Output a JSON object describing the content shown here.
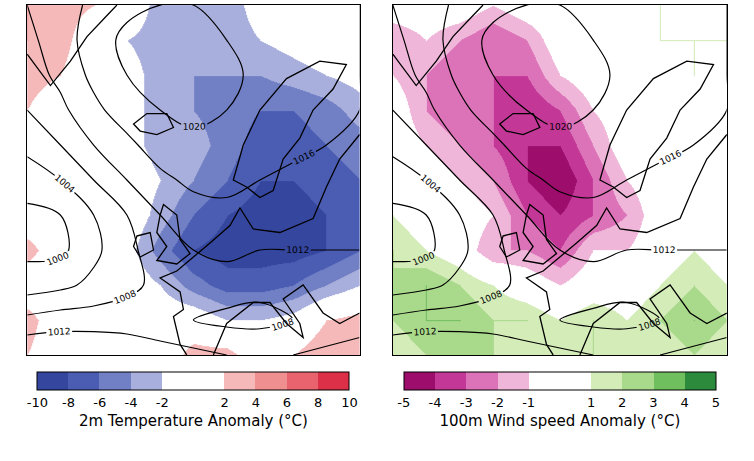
{
  "chart_data": [
    {
      "type": "heatmap",
      "colorbar_title": "2m Temperature Anomaly (°C)",
      "tick_labels": false,
      "x": [
        0,
        1,
        2,
        3,
        4,
        5,
        6,
        7,
        8,
        9,
        10
      ],
      "y": [
        10,
        9,
        8,
        7,
        6,
        5,
        4,
        3,
        2,
        1,
        0
      ],
      "z": [
        [
          4,
          3,
          2,
          0,
          -3,
          -3,
          -3,
          -1,
          0,
          0,
          0
        ],
        [
          4,
          3,
          0,
          -2,
          -3,
          -4,
          -3,
          -2,
          -1,
          0,
          0
        ],
        [
          3,
          2,
          0,
          -1,
          -3,
          -4,
          -4,
          -4,
          -3,
          -2,
          -1
        ],
        [
          2,
          0,
          0,
          -1,
          -3,
          -4,
          -5,
          -6,
          -6,
          -5,
          -3
        ],
        [
          0,
          0,
          0,
          -1,
          -3,
          -3,
          -5,
          -7,
          -7,
          -6,
          -5
        ],
        [
          0,
          0,
          0,
          0,
          -2,
          -4,
          -6,
          -8,
          -8,
          -7,
          -6
        ],
        [
          0,
          0,
          0,
          0,
          -3,
          -6,
          -8,
          -9,
          -9,
          -8,
          -7
        ],
        [
          3,
          0,
          0,
          -1,
          -5,
          -8,
          -9,
          -9,
          -9,
          -8,
          -6
        ],
        [
          0,
          0,
          0,
          0,
          -2,
          -5,
          -7,
          -7,
          -6,
          -4,
          -2
        ],
        [
          3,
          0,
          0,
          0,
          0,
          0,
          -2,
          -2,
          -1,
          2,
          3
        ],
        [
          2,
          0,
          0,
          0,
          0,
          3,
          3,
          0,
          2,
          4,
          3
        ]
      ],
      "color_levels": [
        -10,
        -8,
        -6,
        -4,
        -2,
        2,
        4,
        6,
        8,
        10
      ],
      "colors": [
        "#34469e",
        "#4a5db3",
        "#717fc4",
        "#a9afdc",
        "#ffffff",
        "#f5b9b9",
        "#ef8f8f",
        "#e8636d",
        "#dc2f48"
      ],
      "colorbar_ticks": [
        -10,
        -8,
        -6,
        -4,
        -2,
        2,
        4,
        6,
        8,
        10
      ],
      "isobars": {
        "levels": [
          1000,
          1004,
          1008,
          1012,
          1016,
          1020
        ],
        "z": [
          [
            1012,
            1014,
            1017,
            1019,
            1020,
            1020,
            1019,
            1018,
            1017,
            1017,
            1016
          ],
          [
            1011,
            1014,
            1018,
            1021,
            1022,
            1022,
            1020,
            1019,
            1018,
            1017,
            1016
          ],
          [
            1010,
            1013,
            1017,
            1020,
            1022,
            1022,
            1021,
            1019,
            1018,
            1017,
            1016
          ],
          [
            1008,
            1011,
            1015,
            1018,
            1020,
            1021,
            1020,
            1019,
            1018,
            1017,
            1016
          ],
          [
            1005,
            1008,
            1012,
            1015,
            1018,
            1019,
            1019,
            1018,
            1017,
            1016,
            1015
          ],
          [
            1002,
            1004,
            1008,
            1012,
            1015,
            1017,
            1017,
            1016,
            1015,
            1014,
            1014
          ],
          [
            999,
            1000,
            1004,
            1008,
            1012,
            1014,
            1015,
            1014,
            1013,
            1013,
            1013
          ],
          [
            999,
            999,
            1003,
            1007,
            1010,
            1012,
            1013,
            1012,
            1012,
            1012,
            1012
          ],
          [
            1002,
            1003,
            1005,
            1007,
            1009,
            1010,
            1010,
            1009,
            1010,
            1011,
            1012
          ],
          [
            1009,
            1010,
            1010,
            1010,
            1009,
            1008,
            1007,
            1007,
            1008,
            1009,
            1010
          ],
          [
            1016,
            1016,
            1016,
            1015,
            1014,
            1013,
            1012,
            1011,
            1012,
            1013,
            1014
          ]
        ]
      }
    },
    {
      "type": "heatmap",
      "colorbar_title": "100m Wind speed Anomaly (°C)",
      "tick_labels": false,
      "x": [
        0,
        1,
        2,
        3,
        4,
        5,
        6,
        7,
        8,
        9,
        10
      ],
      "y": [
        10,
        9,
        8,
        7,
        6,
        5,
        4,
        3,
        2,
        1,
        0
      ],
      "z": [
        [
          0,
          0,
          0,
          -1,
          0,
          0,
          -1,
          0,
          1,
          0,
          1
        ],
        [
          -2,
          -1,
          -2,
          -3,
          -2,
          0,
          0,
          0,
          1,
          1,
          1
        ],
        [
          -1,
          -2,
          -3,
          -3,
          -3,
          -1,
          0,
          0,
          0,
          1,
          0
        ],
        [
          0,
          -2,
          -3,
          -3,
          -4,
          -3,
          -1,
          0,
          0,
          0,
          0
        ],
        [
          0,
          -1,
          -2,
          -3,
          -4,
          -4,
          -2,
          0,
          0,
          0,
          0
        ],
        [
          0,
          0,
          -1,
          -2,
          -4,
          -5,
          -3,
          -1,
          0,
          0,
          1
        ],
        [
          1,
          0,
          0,
          -1,
          -3,
          -4,
          -3,
          -2,
          0,
          0,
          0
        ],
        [
          2,
          1,
          0,
          -2,
          -2,
          -3,
          -1,
          -1,
          0,
          1,
          0
        ],
        [
          2,
          3,
          2,
          1,
          0,
          -1,
          0,
          0,
          1,
          2,
          1
        ],
        [
          2,
          3,
          3,
          2,
          2,
          1,
          2,
          1,
          2,
          3,
          2
        ],
        [
          1,
          2,
          2,
          2,
          1,
          1,
          2,
          1,
          1,
          2,
          1
        ]
      ],
      "color_levels": [
        -5,
        -4,
        -3,
        -2,
        -1,
        1,
        2,
        3,
        4,
        5
      ],
      "colors": [
        "#9c0d6c",
        "#c33797",
        "#dc73b8",
        "#f0b6d9",
        "#ffffff",
        "#d3ecb8",
        "#a9d98b",
        "#6fbf5f",
        "#2c8a3d"
      ],
      "colorbar_ticks": [
        -5,
        -4,
        -3,
        -2,
        -1,
        1,
        2,
        3,
        4,
        5
      ],
      "isobars": {
        "levels": [
          1000,
          1004,
          1008,
          1012,
          1016,
          1020
        ],
        "z": [
          [
            1012,
            1014,
            1017,
            1019,
            1020,
            1020,
            1019,
            1018,
            1017,
            1017,
            1016
          ],
          [
            1011,
            1014,
            1018,
            1021,
            1022,
            1022,
            1020,
            1019,
            1018,
            1017,
            1016
          ],
          [
            1010,
            1013,
            1017,
            1020,
            1022,
            1022,
            1021,
            1019,
            1018,
            1017,
            1016
          ],
          [
            1008,
            1011,
            1015,
            1018,
            1020,
            1021,
            1020,
            1019,
            1018,
            1017,
            1016
          ],
          [
            1005,
            1008,
            1012,
            1015,
            1018,
            1019,
            1019,
            1018,
            1017,
            1016,
            1015
          ],
          [
            1002,
            1004,
            1008,
            1012,
            1015,
            1017,
            1017,
            1016,
            1015,
            1014,
            1014
          ],
          [
            999,
            1000,
            1004,
            1008,
            1012,
            1014,
            1015,
            1014,
            1013,
            1013,
            1013
          ],
          [
            999,
            999,
            1003,
            1007,
            1010,
            1012,
            1013,
            1012,
            1012,
            1012,
            1012
          ],
          [
            1002,
            1003,
            1005,
            1007,
            1009,
            1010,
            1010,
            1009,
            1010,
            1011,
            1012
          ],
          [
            1009,
            1010,
            1010,
            1010,
            1009,
            1008,
            1007,
            1007,
            1008,
            1009,
            1010
          ],
          [
            1016,
            1016,
            1016,
            1015,
            1014,
            1013,
            1012,
            1011,
            1012,
            1013,
            1014
          ]
        ]
      }
    }
  ]
}
